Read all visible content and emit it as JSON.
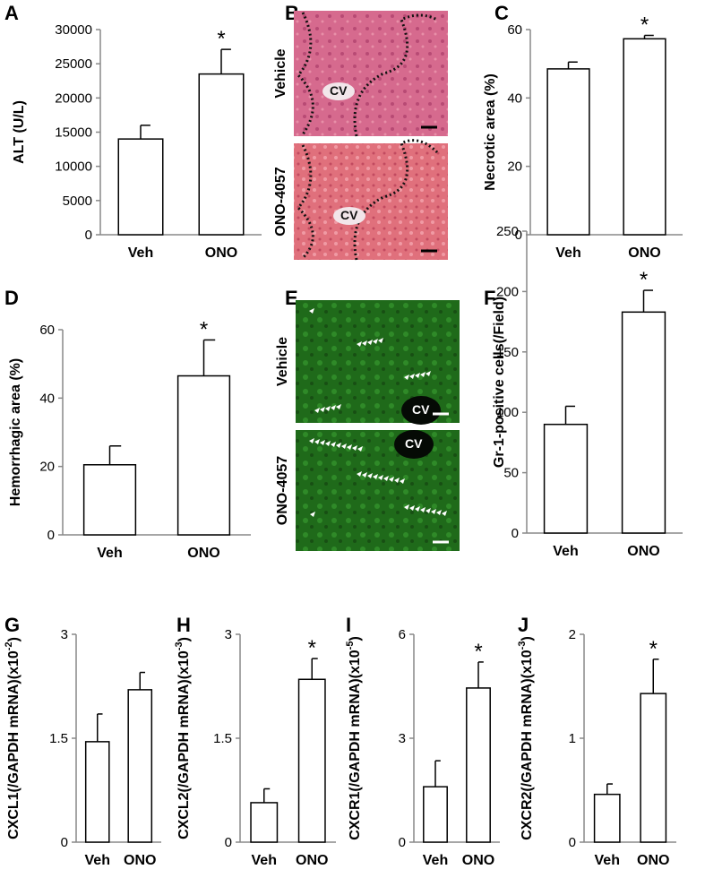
{
  "chart_data": [
    {
      "type": "bar",
      "letter": "A",
      "ylabel": "ALT (U/L)",
      "categories": [
        "Veh",
        "ONO"
      ],
      "values": [
        14000,
        23500
      ],
      "errors": [
        2000,
        3600
      ],
      "ylim": [
        0,
        30000
      ],
      "yticks": [
        0,
        5000,
        10000,
        15000,
        20000,
        25000,
        30000
      ],
      "annotation": "*",
      "color": "#ffffff"
    },
    {
      "type": "bar",
      "letter": "C",
      "ylabel": "Necrotic area (%)",
      "categories": [
        "Veh",
        "ONO"
      ],
      "values": [
        48.5,
        57.3
      ],
      "errors": [
        2,
        1
      ],
      "ylim": [
        0,
        60
      ],
      "yticks": [
        0,
        20,
        40,
        60
      ],
      "annotation": "*",
      "color": "#ffffff"
    },
    {
      "type": "bar",
      "letter": "D",
      "ylabel": "Hemorrhagic  area (%)",
      "categories": [
        "Veh",
        "ONO"
      ],
      "values": [
        20.5,
        46.5
      ],
      "errors": [
        5.5,
        10.5
      ],
      "ylim": [
        0,
        60
      ],
      "yticks": [
        0,
        20,
        40,
        60
      ],
      "annotation": "*",
      "color": "#ffffff"
    },
    {
      "type": "bar",
      "letter": "F",
      "ylabel": "Gr-1-positive cells(/Field)",
      "categories": [
        "Veh",
        "ONO"
      ],
      "values": [
        90,
        183
      ],
      "errors": [
        15,
        18
      ],
      "ylim": [
        0,
        250
      ],
      "yticks": [
        0,
        50,
        100,
        150,
        200,
        250
      ],
      "annotation": "*",
      "color": "#ffffff"
    },
    {
      "type": "bar",
      "letter": "G",
      "ylabel": "CXCL1(/GAPDH mRNA)(x10",
      "ylabel_exp": "-2",
      "ylabel_tail": ")",
      "categories": [
        "Veh",
        "ONO"
      ],
      "values": [
        1.45,
        2.2
      ],
      "errors": [
        0.4,
        0.25
      ],
      "ylim": [
        0,
        3
      ],
      "yticks": [
        0,
        1.5,
        3
      ],
      "color": "#ffffff"
    },
    {
      "type": "bar",
      "letter": "H",
      "ylabel": "CXCL2(/GAPDH mRNA)(x10",
      "ylabel_exp": "-3",
      "ylabel_tail": ")",
      "categories": [
        "Veh",
        "ONO"
      ],
      "values": [
        0.57,
        2.35
      ],
      "errors": [
        0.2,
        0.3
      ],
      "ylim": [
        0,
        3
      ],
      "yticks": [
        0,
        1.5,
        3
      ],
      "annotation": "*",
      "color": "#ffffff"
    },
    {
      "type": "bar",
      "letter": "I",
      "ylabel": "CXCR1(/GAPDH mRNA)(x10",
      "ylabel_exp": "-5",
      "ylabel_tail": ")",
      "categories": [
        "Veh",
        "ONO"
      ],
      "values": [
        1.6,
        4.45
      ],
      "errors": [
        0.75,
        0.75
      ],
      "ylim": [
        0,
        6
      ],
      "yticks": [
        0,
        3,
        6
      ],
      "annotation": "*",
      "color": "#ffffff"
    },
    {
      "type": "bar",
      "letter": "J",
      "ylabel": "CXCR2(/GAPDH mRNA)(x10",
      "ylabel_exp": "-3",
      "ylabel_tail": ")",
      "categories": [
        "Veh",
        "ONO"
      ],
      "values": [
        0.46,
        1.43
      ],
      "errors": [
        0.1,
        0.33
      ],
      "ylim": [
        0,
        2
      ],
      "yticks": [
        0,
        1,
        2
      ],
      "annotation": "*",
      "color": "#ffffff"
    }
  ],
  "images": [
    {
      "letter": "B",
      "panels": [
        {
          "label": "Vehicle",
          "annotation": "CV"
        },
        {
          "label": "ONO-4057",
          "annotation": "CV"
        }
      ]
    },
    {
      "letter": "E",
      "panels": [
        {
          "label": "Vehicle",
          "annotation": "CV"
        },
        {
          "label": "ONO-4057",
          "annotation": "CV"
        }
      ]
    }
  ]
}
